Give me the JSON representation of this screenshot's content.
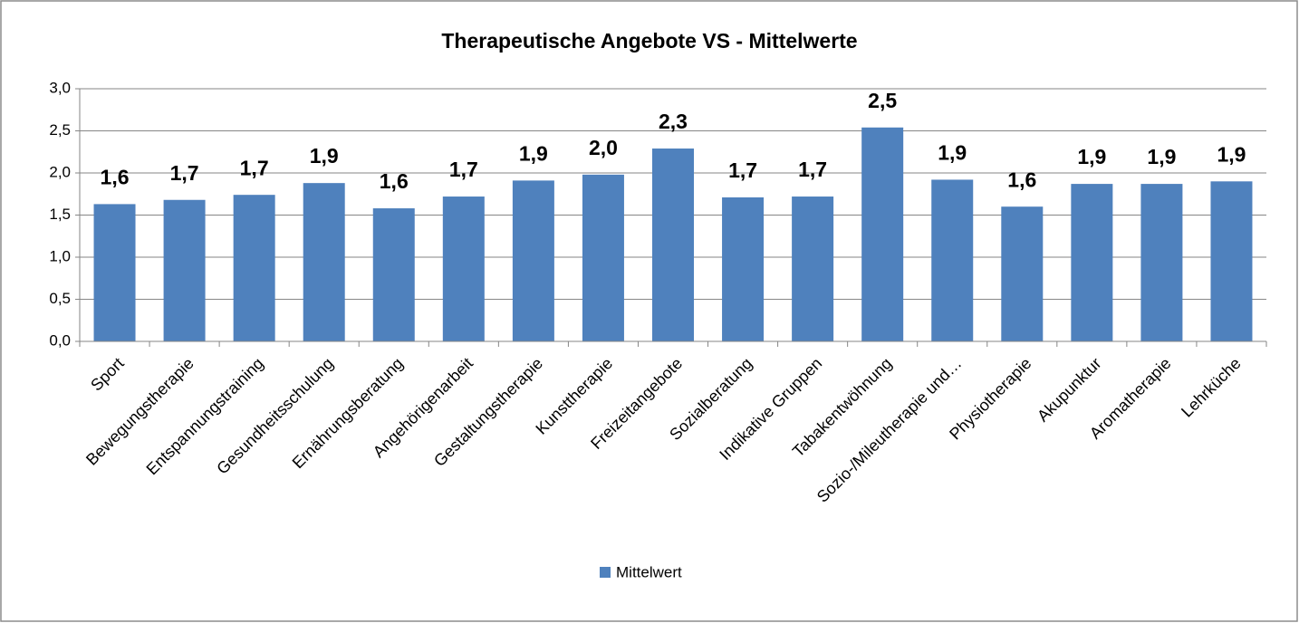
{
  "chart_data": {
    "type": "bar",
    "title": "Therapeutische Angebote VS - Mittelwerte",
    "categories": [
      "Sport",
      "Bewegungstherapie",
      "Entspannungstraining",
      "Gesundheitsschulung",
      "Ernährungsberatung",
      "Angehörigenarbeit",
      "Gestaltungstherapie",
      "Kunsttherapie",
      "Freizeitangebote",
      "Sozialberatung",
      "Indikative Gruppen",
      "Tabakentwöhnung",
      "Sozio-/Mileutherapie und…",
      "Physiotherapie",
      "Akupunktur",
      "Aromatherapie",
      "Lehrküche"
    ],
    "series": [
      {
        "name": "Mittelwert",
        "color": "#4f81bd",
        "values": [
          1.63,
          1.68,
          1.74,
          1.88,
          1.58,
          1.72,
          1.91,
          1.98,
          2.29,
          1.71,
          1.72,
          2.54,
          1.92,
          1.6,
          1.87,
          1.87,
          1.9
        ],
        "value_labels": [
          "1,6",
          "1,7",
          "1,7",
          "1,9",
          "1,6",
          "1,7",
          "1,9",
          "2,0",
          "2,3",
          "1,7",
          "1,7",
          "2,5",
          "1,9",
          "1,6",
          "1,9",
          "1,9",
          "1,9"
        ]
      }
    ],
    "ylim": [
      0,
      3
    ],
    "yticks": [
      {
        "value": 0,
        "label": "0,0"
      },
      {
        "value": 0.5,
        "label": "0,5"
      },
      {
        "value": 1,
        "label": "1,0"
      },
      {
        "value": 1.5,
        "label": "1,5"
      },
      {
        "value": 2,
        "label": "2,0"
      },
      {
        "value": 2.5,
        "label": "2,5"
      },
      {
        "value": 3,
        "label": "3,0"
      }
    ],
    "grid": true,
    "legend": "bottom"
  }
}
